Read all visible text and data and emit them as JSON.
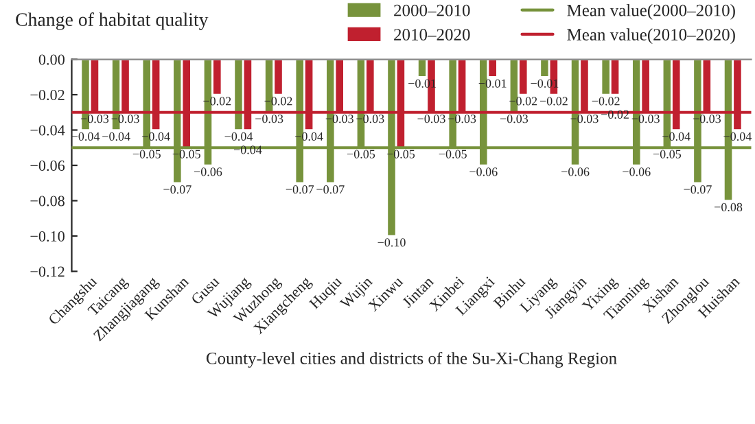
{
  "chart_data": {
    "type": "bar",
    "title": "Change of habitat quality",
    "xlabel": "County-level cities and districts of the Su-Xi-Chang Region",
    "categories": [
      "Changshu",
      "Taicang",
      "Zhangjiagang",
      "Kunshan",
      "Gusu",
      "Wujiang",
      "Wuzhong",
      "Xiangcheng",
      "Huqiu",
      "Wujin",
      "Xinwu",
      "Jintan",
      "Xinbei",
      "Liangxi",
      "Binhu",
      "Liyang",
      "Jiangyin",
      "Yixing",
      "Tianning",
      "Xishan",
      "Zhonglou",
      "Huishan"
    ],
    "series": [
      {
        "name": "2000–2010",
        "color": "#77933c",
        "values": [
          -0.04,
          -0.04,
          -0.05,
          -0.07,
          -0.06,
          -0.04,
          -0.03,
          -0.07,
          -0.07,
          -0.05,
          -0.1,
          -0.01,
          -0.05,
          -0.06,
          -0.03,
          -0.01,
          -0.06,
          -0.02,
          -0.06,
          -0.05,
          -0.07,
          -0.08
        ],
        "value_labels": [
          "−0.04",
          "−0.04",
          "−0.05",
          "−0.07",
          "−0.06",
          "−0.04",
          "−0.03",
          "−0.07",
          "−0.07",
          "−0.05",
          "−0.10",
          "−0.01",
          "−0.05",
          "−0.06",
          "−0.03",
          "−0.01",
          "−0.06",
          "−0.02",
          "−0.06",
          "−0.05",
          "−0.07",
          "−0.08"
        ]
      },
      {
        "name": "2010–2020",
        "color": "#c0202f",
        "values": [
          -0.03,
          -0.03,
          -0.04,
          -0.05,
          -0.02,
          -0.04,
          -0.02,
          -0.04,
          -0.03,
          -0.03,
          -0.05,
          -0.03,
          -0.03,
          -0.01,
          -0.02,
          -0.02,
          -0.03,
          -0.02,
          -0.03,
          -0.04,
          -0.03,
          -0.04
        ],
        "value_labels": [
          "−0.03",
          "−0.03",
          "−0.04",
          "−0.05",
          "−0.02",
          "−0.04",
          "−0.02",
          "−0.04",
          "−0.03",
          "−0.03",
          "−0.05",
          "−0.03",
          "−0.03",
          "−0.01",
          "−0.02",
          "−0.02",
          "−0.03",
          "−0.02",
          "−0.03",
          "−0.04",
          "−0.03",
          "−0.04"
        ]
      }
    ],
    "ref_lines": [
      {
        "axis": "y",
        "value": -0.05,
        "label": "Mean value(2000–2010)",
        "color": "#77933c"
      },
      {
        "axis": "y",
        "value": -0.03,
        "label": "Mean value(2010–2020)",
        "color": "#c0202f"
      }
    ],
    "ylim": [
      -0.12,
      0.0
    ],
    "yticks": [
      {
        "value": -0.12,
        "label": "−0.12"
      },
      {
        "value": -0.1,
        "label": "−0.10"
      },
      {
        "value": -0.08,
        "label": "−0.08"
      },
      {
        "value": -0.06,
        "label": "−0.06"
      },
      {
        "value": -0.04,
        "label": "−0.04"
      },
      {
        "value": -0.02,
        "label": "−0.02"
      },
      {
        "value": 0.0,
        "label": "0.00"
      }
    ],
    "grid": false,
    "legend": "top right"
  }
}
